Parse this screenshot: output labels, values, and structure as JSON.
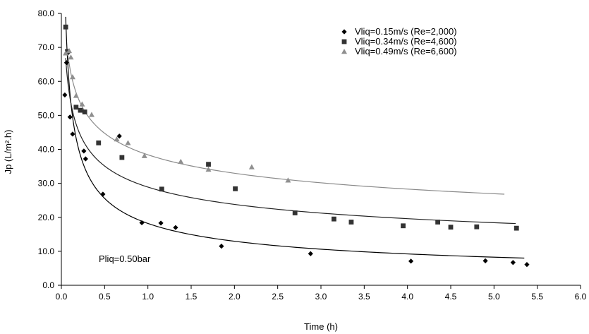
{
  "chart_data": {
    "type": "scatter",
    "xlabel": "Time (h)",
    "ylabel": "Jp (L/m².h)",
    "xlim": [
      0,
      6
    ],
    "ylim": [
      0,
      80
    ],
    "x_ticks": [
      "0.0",
      "0.5",
      "1.0",
      "1.5",
      "2.0",
      "2.5",
      "3.0",
      "3.5",
      "4.0",
      "4.5",
      "5.0",
      "5.5",
      "6.0"
    ],
    "y_ticks": [
      "0.0",
      "10.0",
      "20.0",
      "30.0",
      "40.0",
      "50.0",
      "60.0",
      "70.0",
      "80.0"
    ],
    "legend_position": "top-right",
    "annotation": "Pliq=0.50bar",
    "series": [
      {
        "name": "Vliq=0.15m/s (Re=2,000)",
        "marker": "diamond",
        "color": "#000000",
        "points": [
          [
            0.04,
            56.0
          ],
          [
            0.06,
            65.5
          ],
          [
            0.08,
            68.5
          ],
          [
            0.1,
            49.5
          ],
          [
            0.13,
            44.5
          ],
          [
            0.26,
            39.5
          ],
          [
            0.28,
            37.2
          ],
          [
            0.48,
            26.8
          ],
          [
            0.67,
            43.9
          ],
          [
            0.93,
            18.4
          ],
          [
            1.15,
            18.3
          ],
          [
            1.32,
            17.0
          ],
          [
            1.85,
            11.5
          ],
          [
            2.88,
            9.3
          ],
          [
            4.04,
            7.1
          ],
          [
            4.9,
            7.2
          ],
          [
            5.22,
            6.7
          ],
          [
            5.38,
            6.1
          ]
        ]
      },
      {
        "name": "Vliq=0.34m/s (Re=4,600)",
        "marker": "square",
        "color": "#333333",
        "points": [
          [
            0.05,
            76.0
          ],
          [
            0.07,
            68.8
          ],
          [
            0.17,
            52.4
          ],
          [
            0.22,
            51.5
          ],
          [
            0.27,
            51.0
          ],
          [
            0.43,
            41.9
          ],
          [
            0.7,
            37.6
          ],
          [
            1.16,
            28.3
          ],
          [
            1.7,
            35.6
          ],
          [
            2.01,
            28.4
          ],
          [
            2.7,
            21.3
          ],
          [
            3.15,
            19.5
          ],
          [
            3.35,
            18.6
          ],
          [
            3.95,
            17.5
          ],
          [
            4.35,
            18.6
          ],
          [
            4.5,
            17.1
          ],
          [
            4.8,
            17.2
          ],
          [
            5.26,
            16.8
          ]
        ]
      },
      {
        "name": "Vliq=0.49m/s (Re=6,600)",
        "marker": "triangle",
        "color": "#8f8f8f",
        "points": [
          [
            0.05,
            68.3
          ],
          [
            0.09,
            69.0
          ],
          [
            0.11,
            67.1
          ],
          [
            0.13,
            61.3
          ],
          [
            0.17,
            55.8
          ],
          [
            0.24,
            53.3
          ],
          [
            0.35,
            50.2
          ],
          [
            0.64,
            43.0
          ],
          [
            0.77,
            41.9
          ],
          [
            0.96,
            38.1
          ],
          [
            1.38,
            36.4
          ],
          [
            1.7,
            34.1
          ],
          [
            2.2,
            34.8
          ],
          [
            2.62,
            30.9
          ]
        ]
      }
    ],
    "fit_lines": [
      {
        "color": "#000000",
        "a": 18.2,
        "b": 0.49,
        "x_range": [
          0.05,
          5.35
        ]
      },
      {
        "color": "#222222",
        "a": 28.9,
        "b": 0.28,
        "x_range": [
          0.05,
          5.25
        ]
      },
      {
        "color": "#8a8a8a",
        "a": 38.4,
        "b": 0.22,
        "x_range": [
          0.07,
          5.12
        ]
      }
    ]
  }
}
